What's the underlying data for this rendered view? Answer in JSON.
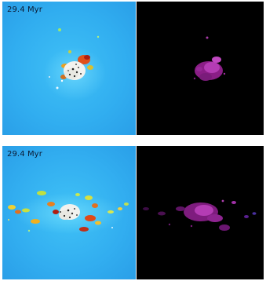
{
  "figure": {
    "rows": [
      {
        "id": "top",
        "time_label": "29.4 Myr",
        "left_panel": {
          "background": "#35b2f0",
          "colormap": "blue-yellow-red"
        },
        "right_panel": {
          "background": "#000000",
          "colormap": "magenta"
        }
      },
      {
        "id": "bottom",
        "time_label": "29.4 Myr",
        "left_panel": {
          "background": "#36aef0",
          "colormap": "blue-yellow-red"
        },
        "right_panel": {
          "background": "#000000",
          "colormap": "magenta"
        }
      }
    ]
  }
}
